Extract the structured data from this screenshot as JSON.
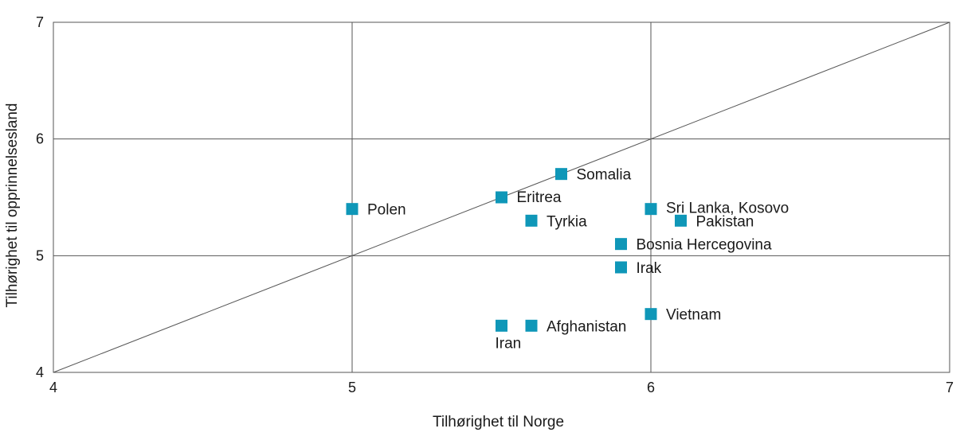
{
  "chart_data": {
    "type": "scatter",
    "title": "",
    "xlabel": "Tilhørighet til Norge",
    "ylabel": "Tilhørighet til opprinnelsesland",
    "xlim": [
      4,
      7
    ],
    "ylim": [
      4,
      7
    ],
    "xticks": [
      "4",
      "5",
      "6",
      "7"
    ],
    "yticks": [
      "4",
      "5",
      "6",
      "7"
    ],
    "grid": true,
    "reference_line": "diagonal",
    "marker_color": "#0f97b8",
    "points": [
      {
        "label": "Polen",
        "x": 5.0,
        "y": 5.4
      },
      {
        "label": "Eritrea",
        "x": 5.5,
        "y": 5.5
      },
      {
        "label": "Somalia",
        "x": 5.7,
        "y": 5.7
      },
      {
        "label": "Tyrkia",
        "x": 5.6,
        "y": 5.3
      },
      {
        "label": "Sri Lanka, Kosovo",
        "x": 6.0,
        "y": 5.4
      },
      {
        "label": "Pakistan",
        "x": 6.1,
        "y": 5.3
      },
      {
        "label": "Bosnia Hercegovina",
        "x": 5.9,
        "y": 5.1
      },
      {
        "label": "Irak",
        "x": 5.9,
        "y": 4.9
      },
      {
        "label": "Vietnam",
        "x": 6.0,
        "y": 4.5
      },
      {
        "label": "Afghanistan",
        "x": 5.6,
        "y": 4.4
      },
      {
        "label": "Iran",
        "x": 5.5,
        "y": 4.4
      }
    ]
  }
}
